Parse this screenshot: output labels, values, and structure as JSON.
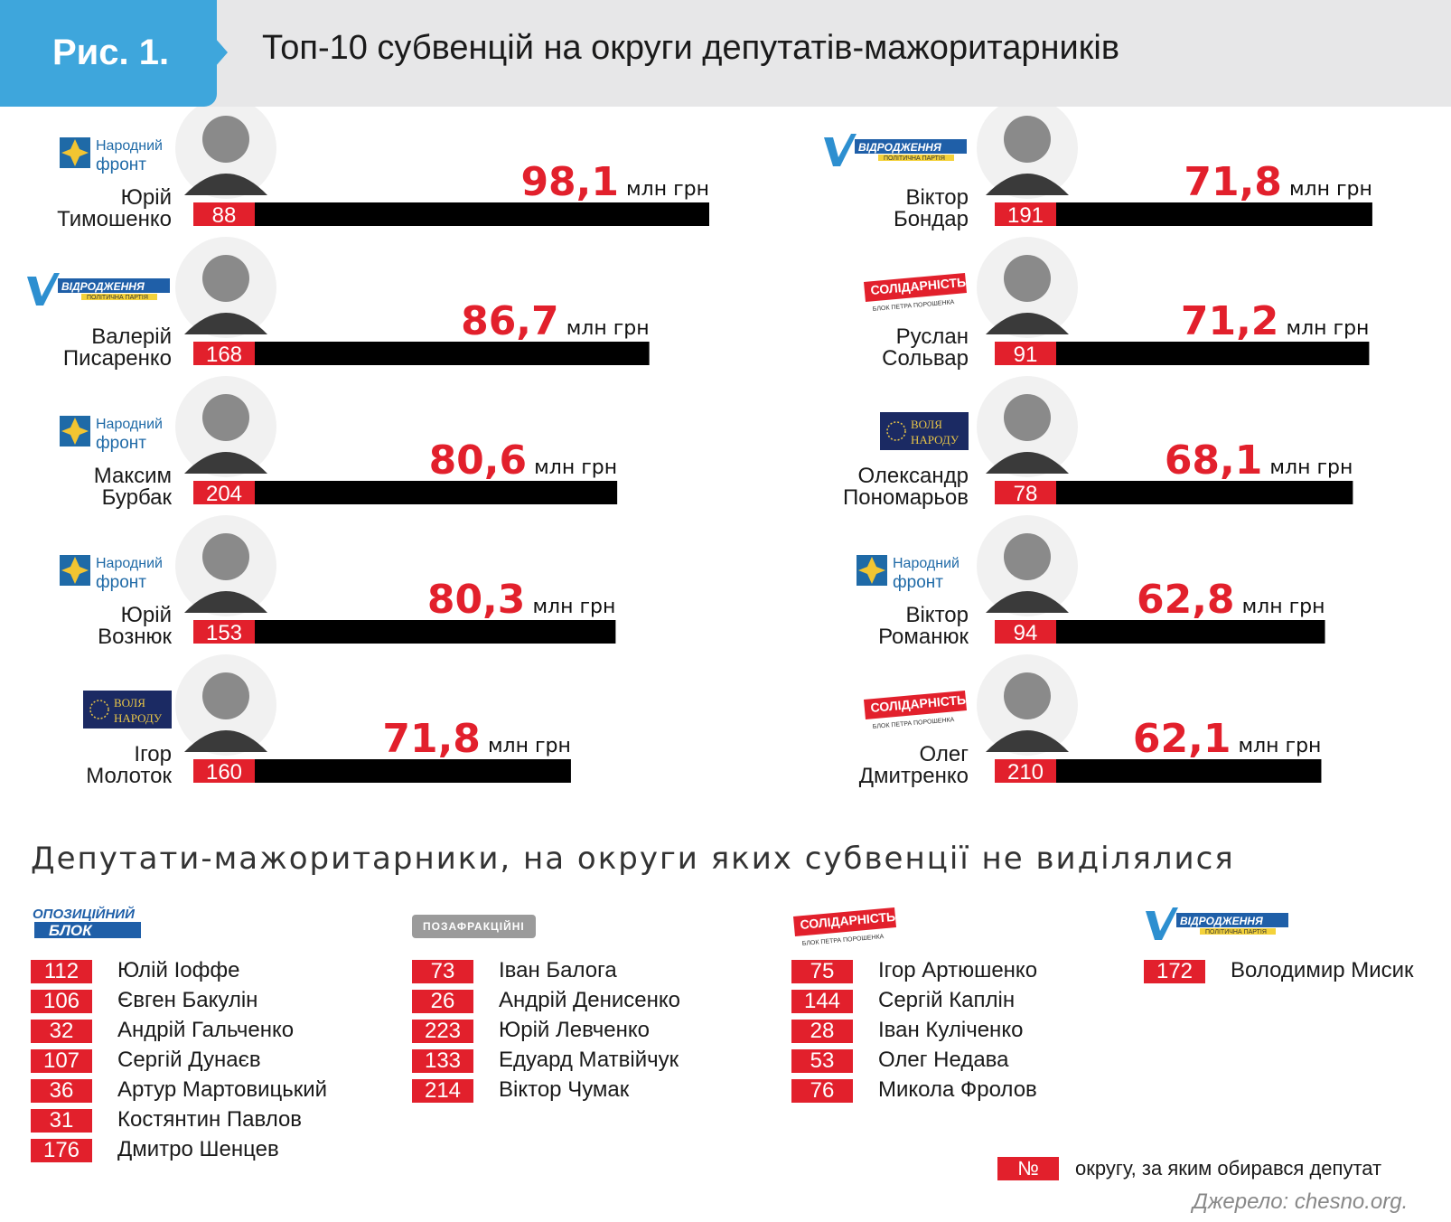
{
  "header": {
    "badge": "Рис. 1.",
    "title": "Топ-10 субвенцій на округи депутатів-мажоритарників"
  },
  "colors": {
    "accent": "#e2202c",
    "badge": "#3ea6dc",
    "bar": "#000000"
  },
  "logos": {
    "nf": {
      "line1": "Народний",
      "line2": "фронт"
    },
    "vid": {
      "text": "ВІДРОДЖЕННЯ",
      "sub": "ПОЛІТИЧНА ПАРТІЯ"
    },
    "sol": {
      "text": "СОЛІДАРНІСТЬ",
      "sub": "БЛОК ПЕТРА ПОРОШЕНКА"
    },
    "vp": {
      "line1": "ВОЛЯ",
      "line2": "НАРОДУ"
    },
    "ob": {
      "line1": "ОПОЗИЦІЙНИЙ",
      "line2": "БЛОК"
    },
    "pozaf": "ПОЗАФРАКЦІЙНІ"
  },
  "unit": "млн грн",
  "chart_data": {
    "type": "bar",
    "title": "Топ-10 субвенцій на округи депутатів-мажоритарників",
    "unit": "млн грн",
    "items": [
      {
        "first": "Юрій",
        "last": "Тимошенко",
        "district": "88",
        "party": "nf",
        "value": 98.1,
        "label": "98,1"
      },
      {
        "first": "Валерій",
        "last": "Писаренко",
        "district": "168",
        "party": "vid",
        "value": 86.7,
        "label": "86,7"
      },
      {
        "first": "Максим",
        "last": "Бурбак",
        "district": "204",
        "party": "nf",
        "value": 80.6,
        "label": "80,6"
      },
      {
        "first": "Юрій",
        "last": "Вознюк",
        "district": "153",
        "party": "nf",
        "value": 80.3,
        "label": "80,3"
      },
      {
        "first": "Ігор",
        "last": "Молоток",
        "district": "160",
        "party": "vp",
        "value": 71.8,
        "label": "71,8"
      },
      {
        "first": "Віктор",
        "last": "Бондар",
        "district": "191",
        "party": "vid",
        "value": 71.8,
        "label": "71,8"
      },
      {
        "first": "Руслан",
        "last": "Сольвар",
        "district": "91",
        "party": "sol",
        "value": 71.2,
        "label": "71,2"
      },
      {
        "first": "Олександр",
        "last": "Пономарьов",
        "district": "78",
        "party": "vp",
        "value": 68.1,
        "label": "68,1"
      },
      {
        "first": "Віктор",
        "last": "Романюк",
        "district": "94",
        "party": "nf",
        "value": 62.8,
        "label": "62,8"
      },
      {
        "first": "Олег",
        "last": "Дмитренко",
        "district": "210",
        "party": "sol",
        "value": 62.1,
        "label": "62,1"
      }
    ]
  },
  "no_subvention": {
    "title": "Депутати-мажоритарники, на округи яких субвенції не виділялися",
    "groups": [
      {
        "party": "ob",
        "rows": [
          {
            "num": "112",
            "name": "Юлій Іоффе"
          },
          {
            "num": "106",
            "name": "Євген Бакулін"
          },
          {
            "num": "32",
            "name": "Андрій Гальченко"
          },
          {
            "num": "107",
            "name": "Сергій Дунаєв"
          },
          {
            "num": "36",
            "name": "Артур Мартовицький"
          },
          {
            "num": "31",
            "name": "Костянтин Павлов"
          },
          {
            "num": "176",
            "name": "Дмитро Шенцев"
          }
        ]
      },
      {
        "party": "pozaf",
        "rows": [
          {
            "num": "73",
            "name": "Іван Балога"
          },
          {
            "num": "26",
            "name": "Андрій Денисенко"
          },
          {
            "num": "223",
            "name": "Юрій Левченко"
          },
          {
            "num": "133",
            "name": "Едуард Матвійчук"
          },
          {
            "num": "214",
            "name": "Віктор Чумак"
          }
        ]
      },
      {
        "party": "sol",
        "rows": [
          {
            "num": "75",
            "name": "Ігор Артюшенко"
          },
          {
            "num": "144",
            "name": "Сергій Каплін"
          },
          {
            "num": "28",
            "name": "Іван Куліченко"
          },
          {
            "num": "53",
            "name": "Олег Недава"
          },
          {
            "num": "76",
            "name": "Микола Фролов"
          }
        ]
      },
      {
        "party": "vid",
        "rows": [
          {
            "num": "172",
            "name": "Володимир Мисик"
          }
        ]
      }
    ]
  },
  "legend": {
    "symbol": "№",
    "text": "округу, за яким обирався депутат"
  },
  "source": "Джерело: chesno.org."
}
